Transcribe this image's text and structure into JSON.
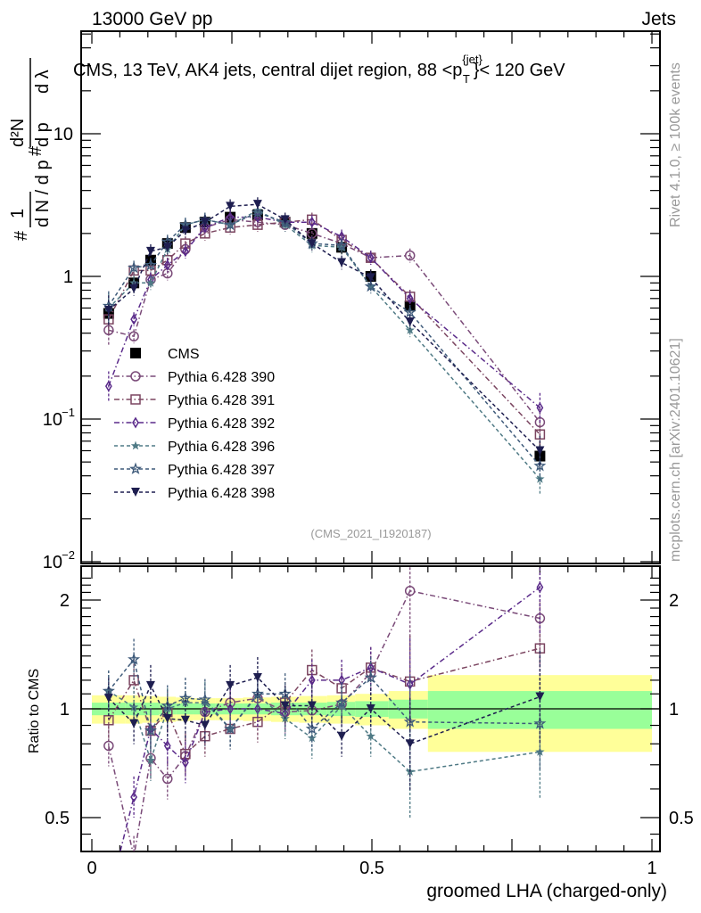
{
  "header": {
    "left": "13000 GeV pp",
    "right": "Jets"
  },
  "side_labels": {
    "rivet": "Rivet 4.1.0, ≥ 100k events",
    "mcplots": "mcplots.cern.ch [arXiv:2401.10621]"
  },
  "chart_data": [
    {
      "type": "scatter",
      "panel": "main",
      "title": "CMS, 13 TeV, AK4 jets, central dijet region, 88 < p_T^{jet} < 120 GeV",
      "title_parts": {
        "pre": "CMS, 13 TeV, AK4 jets, central dijet region, 88 <p",
        "sup": "{jet}",
        "sub": "T",
        "post": "}< 120 GeV"
      },
      "ylabel": "1/dN/dp_T  d²N/dp_T dλ",
      "xlabel": "",
      "yscale": "log",
      "ylim": [
        0.01,
        60
      ],
      "xlim": [
        0,
        1
      ],
      "ytick_labels": [
        {
          "v": 10,
          "mant": "10",
          "exp": ""
        },
        {
          "v": 1,
          "mant": "1",
          "exp": ""
        },
        {
          "v": 0.1,
          "mant": "10",
          "exp": "−1"
        },
        {
          "v": 0.01,
          "mant": "10",
          "exp": "−2"
        }
      ],
      "watermark": "(CMS_2021_I1920187)",
      "legend_position": "center-left",
      "x": [
        0.03,
        0.075,
        0.105,
        0.135,
        0.167,
        0.202,
        0.247,
        0.296,
        0.345,
        0.393,
        0.446,
        0.498,
        0.568,
        0.8
      ],
      "series": [
        {
          "name": "CMS",
          "marker": "filled-square",
          "color": "#000000",
          "line": "none",
          "values": [
            0.55,
            0.9,
            1.3,
            1.7,
            2.2,
            2.4,
            2.6,
            2.7,
            2.4,
            2.0,
            1.6,
            1.0,
            0.62,
            0.055
          ]
        },
        {
          "name": "Pythia 6.428 390",
          "marker": "open-circle",
          "color": "#7a4a78",
          "line": "dashdot",
          "values": [
            0.42,
            0.38,
            0.95,
            1.05,
            1.55,
            2.2,
            2.5,
            2.4,
            2.3,
            2.0,
            1.7,
            1.35,
            1.4,
            0.095
          ]
        },
        {
          "name": "Pythia 6.428 391",
          "marker": "open-square",
          "color": "#7b4560",
          "line": "dashdot",
          "values": [
            0.5,
            1.1,
            1.1,
            1.3,
            1.7,
            2.0,
            2.2,
            2.3,
            2.4,
            2.5,
            1.8,
            1.35,
            0.72,
            0.078
          ]
        },
        {
          "name": "Pythia 6.428 392",
          "marker": "open-diamond",
          "color": "#5a2a8a",
          "line": "dashdot",
          "values": [
            0.17,
            0.5,
            0.95,
            1.2,
            1.5,
            2.2,
            2.6,
            2.6,
            2.4,
            2.4,
            1.9,
            1.35,
            0.7,
            0.12
          ]
        },
        {
          "name": "Pythia 6.428 396",
          "marker": "filled-star",
          "color": "#4f7a85",
          "line": "dashed",
          "values": [
            0.6,
            0.9,
            0.9,
            1.55,
            2.3,
            2.5,
            2.3,
            2.9,
            2.3,
            1.65,
            1.6,
            0.85,
            0.42,
            0.038
          ]
        },
        {
          "name": "Pythia 6.428 397",
          "marker": "open-star",
          "color": "#3e5a7a",
          "line": "dashed",
          "values": [
            0.62,
            1.15,
            1.2,
            1.75,
            2.3,
            2.5,
            2.3,
            2.8,
            2.4,
            1.7,
            1.65,
            0.85,
            0.56,
            0.047
          ]
        },
        {
          "name": "Pythia 6.428 398",
          "marker": "filled-triangle-down",
          "color": "#1e1e50",
          "line": "dashed",
          "values": [
            0.58,
            0.82,
            1.5,
            1.6,
            2.1,
            2.4,
            3.1,
            3.2,
            2.5,
            1.7,
            1.25,
            0.98,
            0.48,
            0.06
          ]
        }
      ]
    },
    {
      "type": "scatter",
      "panel": "ratio",
      "ylabel": "Ratio to CMS",
      "xlabel": "groomed LHA (charged-only)",
      "yscale": "log",
      "ylim": [
        0.42,
        2.35
      ],
      "xlim": [
        0,
        1
      ],
      "xtick_labels": [
        "0",
        "0.5",
        "1"
      ],
      "ytick_labels": [
        {
          "v": 2,
          "label": "2"
        },
        {
          "v": 1,
          "label": "1"
        },
        {
          "v": 0.5,
          "label": "0.5"
        }
      ],
      "ytick_labels_right": [
        {
          "v": 2,
          "label": "2"
        },
        {
          "v": 1,
          "label": "1"
        },
        {
          "v": 0.5,
          "label": "0.5"
        }
      ],
      "band_edges": [
        0,
        0.06,
        0.09,
        0.12,
        0.15,
        0.18,
        0.22,
        0.27,
        0.32,
        0.37,
        0.42,
        0.47,
        0.53,
        0.6,
        1.0
      ],
      "band_stat": [
        0.04,
        0.04,
        0.04,
        0.035,
        0.035,
        0.035,
        0.035,
        0.035,
        0.04,
        0.04,
        0.045,
        0.05,
        0.06,
        0.12
      ],
      "band_total": [
        0.09,
        0.09,
        0.085,
        0.08,
        0.075,
        0.07,
        0.07,
        0.075,
        0.08,
        0.085,
        0.09,
        0.1,
        0.12,
        0.24
      ],
      "band_colors": {
        "total": "#ffff99",
        "stat": "#99ff99"
      },
      "x": [
        0.03,
        0.075,
        0.105,
        0.135,
        0.167,
        0.202,
        0.247,
        0.296,
        0.345,
        0.393,
        0.446,
        0.498,
        0.568,
        0.8
      ],
      "series": [
        {
          "name": "Pythia 6.428 390",
          "values": [
            0.79,
            0.39,
            0.73,
            0.64,
            0.74,
            0.98,
            1.04,
            1.07,
            0.98,
            0.99,
            1.03,
            1.26,
            2.12,
            1.78
          ]
        },
        {
          "name": "Pythia 6.428 391",
          "values": [
            0.93,
            1.2,
            0.87,
            0.98,
            0.75,
            0.84,
            0.88,
            0.92,
            1.04,
            1.28,
            1.14,
            1.3,
            1.19,
            1.47
          ]
        },
        {
          "name": "Pythia 6.428 392",
          "values": [
            0.3,
            0.57,
            0.88,
            0.79,
            0.71,
            0.98,
            1.0,
            1.0,
            0.97,
            1.2,
            1.2,
            1.3,
            1.17,
            2.17
          ]
        },
        {
          "name": "Pythia 6.428 396",
          "values": [
            1.12,
            1.01,
            0.72,
            1.0,
            1.04,
            1.04,
            0.88,
            1.09,
            0.94,
            0.83,
            1.02,
            0.84,
            0.67,
            0.76
          ]
        },
        {
          "name": "Pythia 6.428 397",
          "values": [
            1.12,
            1.37,
            0.87,
            1.02,
            1.07,
            1.06,
            0.88,
            1.1,
            1.1,
            0.88,
            1.04,
            1.22,
            0.92,
            0.91
          ]
        },
        {
          "name": "Pythia 6.428 398",
          "values": [
            1.07,
            0.91,
            1.16,
            0.94,
            0.93,
            0.9,
            1.16,
            1.22,
            1.02,
            1.02,
            0.84,
            1.0,
            0.8,
            1.08
          ]
        }
      ]
    }
  ]
}
